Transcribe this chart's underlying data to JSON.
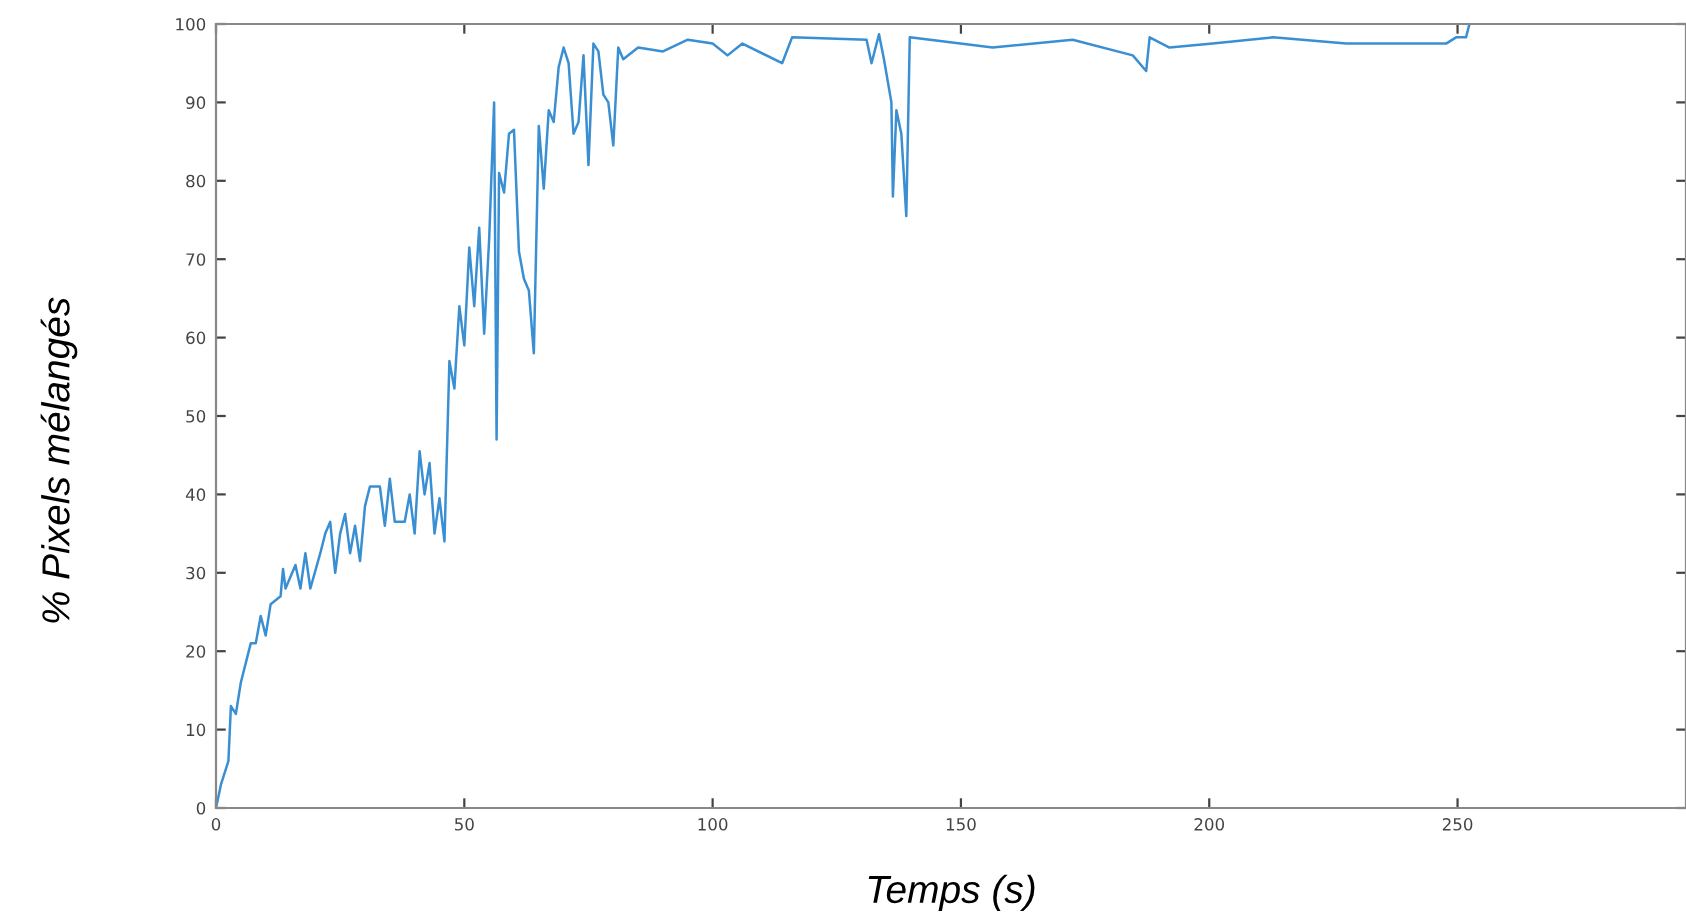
{
  "chart_data": {
    "type": "line",
    "xlabel": "Temps (s)",
    "ylabel": "% Pixels mélangés",
    "x": [
      0,
      1,
      2,
      2.5,
      3,
      4,
      5,
      7,
      8,
      9,
      10,
      11,
      13,
      13.5,
      14,
      16,
      17,
      18,
      19,
      21,
      22,
      23,
      24,
      25,
      26,
      27,
      28,
      29,
      30,
      31,
      33,
      34,
      35,
      36,
      38,
      39,
      40,
      41,
      42,
      43,
      44,
      45,
      46,
      47,
      48,
      49,
      50,
      51,
      52,
      53,
      54,
      55,
      56,
      56.5,
      57,
      58,
      59,
      60,
      61,
      62,
      63,
      64,
      65,
      66,
      67,
      68,
      69,
      70,
      71,
      72,
      73,
      74,
      75,
      76,
      77,
      78,
      79,
      80,
      81,
      82,
      85,
      90,
      95,
      100,
      103,
      106,
      114,
      116,
      131,
      132,
      133.5,
      134.5,
      136,
      136.3,
      137,
      138,
      139,
      139.7,
      156.4,
      172.5,
      184.6,
      187.3,
      188,
      192,
      200.7,
      212.8,
      227.6,
      247.7,
      249.7,
      251.7,
      252.4
    ],
    "series": [
      {
        "color": "#3a8fd3",
        "values": [
          0,
          3,
          5,
          6,
          13,
          12,
          16,
          21,
          21,
          24.5,
          22,
          26,
          27,
          30.5,
          28,
          31,
          28,
          32.5,
          28,
          32.5,
          35,
          36.5,
          30,
          35,
          37.5,
          32.5,
          36,
          31.5,
          38.5,
          41,
          41,
          36,
          42,
          36.5,
          36.5,
          40,
          35,
          45.5,
          40,
          44,
          35,
          39.5,
          34,
          57,
          53.5,
          64,
          59,
          71.5,
          64,
          74,
          60.5,
          72.5,
          90,
          47,
          81,
          78.5,
          86,
          86.5,
          71,
          67.5,
          66,
          58,
          87,
          79,
          89,
          87.5,
          94.5,
          97,
          95,
          86,
          87.5,
          96,
          82,
          97.5,
          96.5,
          91,
          90,
          84.5,
          97,
          95.5,
          97,
          96.5,
          98,
          97.5,
          96,
          97.5,
          95,
          98.3,
          98,
          95,
          98.7,
          95.5,
          90,
          78,
          89,
          86,
          75.5,
          98.3,
          97,
          98,
          96,
          94,
          98.3,
          97,
          97.5,
          98.3,
          97.5,
          97.5,
          98.3,
          98.3,
          100
        ]
      }
    ],
    "xlim": [
      0,
      296
    ],
    "ylim": [
      0,
      100
    ],
    "xticks": [
      0,
      50,
      100,
      150,
      200,
      250
    ],
    "yticks": [
      0,
      10,
      20,
      30,
      40,
      50,
      60,
      70,
      80,
      90,
      100
    ],
    "grid": false,
    "marker": "none",
    "line_style": "solid"
  }
}
